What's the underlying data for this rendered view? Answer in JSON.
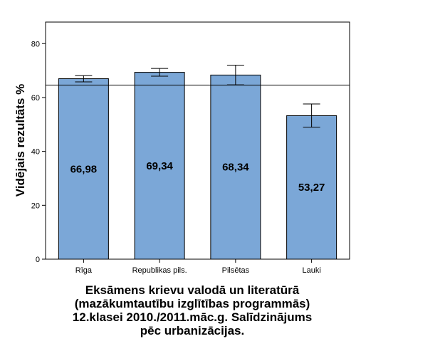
{
  "chart_data": {
    "type": "bar",
    "categories": [
      "Rīga",
      "Republikas pils.",
      "Pilsētas",
      "Lauki"
    ],
    "values": [
      66.98,
      69.34,
      68.34,
      53.27
    ],
    "value_labels": [
      "66,98",
      "69,34",
      "68,34",
      "53,27"
    ],
    "error_bars": [
      {
        "low": 65.8,
        "high": 68.1
      },
      {
        "low": 67.9,
        "high": 70.8
      },
      {
        "low": 64.7,
        "high": 72.0
      },
      {
        "low": 49.0,
        "high": 57.6
      }
    ],
    "reference_line": 64.6,
    "ylabel": "Vidējais rezultāts %",
    "ylim": [
      0,
      88
    ],
    "yticks": [
      0,
      20,
      40,
      60,
      80
    ],
    "title_lines": [
      "Eksāmens krievu valodā un literatūrā",
      "(mazākumtautību izglītības programmās)",
      "12.klasei 2010./2011.māc.g. Salīdzinājums",
      "pēc urbanizācijas."
    ],
    "bar_color": "#7ba7d7",
    "grid": false
  }
}
